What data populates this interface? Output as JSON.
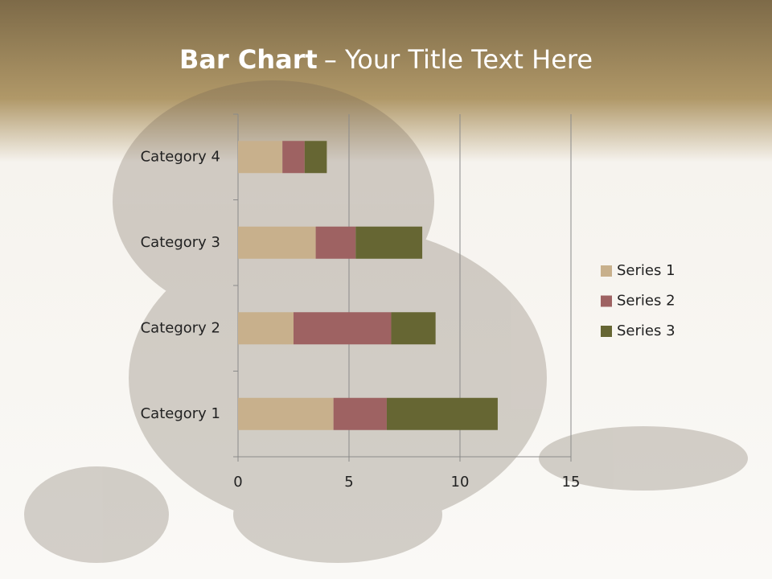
{
  "chart_data": {
    "type": "stacked_bar_horizontal",
    "title": "Bar Chart",
    "title_rest": "– Your Title Text Here",
    "categories": [
      "Category 1",
      "Category 2",
      "Category 3",
      "Category 4"
    ],
    "series": [
      {
        "name": "Series 1",
        "color": "#c8b08c",
        "values": [
          4.3,
          2.5,
          3.5,
          2
        ]
      },
      {
        "name": "Series 2",
        "color": "#9e6262",
        "values": [
          2.4,
          4.4,
          1.8,
          1
        ]
      },
      {
        "name": "Series 3",
        "color": "#666633",
        "values": [
          5,
          2,
          3,
          1
        ]
      }
    ],
    "xlim": [
      0,
      15
    ],
    "xticks": [
      0,
      5,
      10,
      15
    ],
    "grid": true,
    "legend": "right"
  }
}
